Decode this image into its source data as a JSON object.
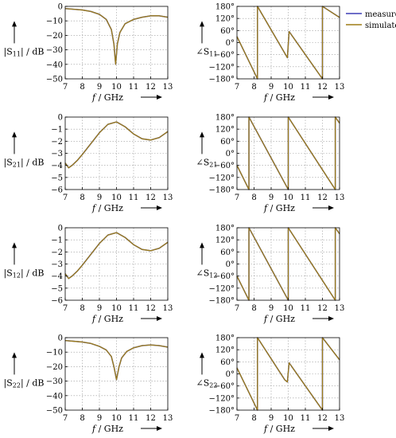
{
  "colors": {
    "measured": "#3f3fb5",
    "simulated": "#9d7d17",
    "grid": "#9a9a9a"
  },
  "legend": {
    "measured": "measured",
    "simulated": "simulated"
  },
  "chart_data": [
    {
      "id": "s11-mag",
      "type": "line",
      "ylabel_main": "|S",
      "ylabel_sub": "11",
      "ylabel_tail": "| / dB",
      "xlabel": "f / GHz",
      "xlim": [
        7,
        13
      ],
      "ylim": [
        -50,
        0
      ],
      "xticks": [
        7,
        8,
        9,
        10,
        11,
        12,
        13
      ],
      "yticks": [
        0,
        -10,
        -20,
        -30,
        -40,
        -50
      ],
      "ytick_suffix": "",
      "series": [
        {
          "name": "measured",
          "x": [
            7,
            7.5,
            8,
            8.5,
            9,
            9.4,
            9.7,
            9.85,
            9.95,
            10.05,
            10.2,
            10.5,
            11,
            11.5,
            12,
            12.5,
            13
          ],
          "y": [
            -1.5,
            -2,
            -2.5,
            -3.5,
            -5.5,
            -9,
            -16,
            -26,
            -40,
            -26,
            -18,
            -12,
            -9,
            -7.5,
            -6.5,
            -6.5,
            -7.5
          ]
        },
        {
          "name": "simulated",
          "x": [
            7,
            7.5,
            8,
            8.5,
            9,
            9.4,
            9.7,
            9.85,
            9.95,
            10.05,
            10.2,
            10.5,
            11,
            11.5,
            12,
            12.5,
            13
          ],
          "y": [
            -1.5,
            -2,
            -2.5,
            -3.5,
            -5.5,
            -9,
            -16,
            -26,
            -40,
            -26,
            -18,
            -12,
            -9,
            -7.5,
            -6.5,
            -6.5,
            -7.5
          ]
        }
      ]
    },
    {
      "id": "s11-phase",
      "type": "line",
      "ylabel_main": "∠S",
      "ylabel_sub": "11",
      "ylabel_tail": "",
      "xlabel": "f / GHz",
      "xlim": [
        7,
        13
      ],
      "ylim": [
        -180,
        180
      ],
      "xticks": [
        7,
        8,
        9,
        10,
        11,
        12,
        13
      ],
      "yticks": [
        180,
        120,
        60,
        0,
        -60,
        -120,
        -180
      ],
      "ytick_suffix": "°",
      "show_legend": true,
      "series": [
        {
          "name": "measured",
          "x": [
            7,
            8.2,
            8.2,
            9.95,
            10.05,
            12,
            12,
            13
          ],
          "y": [
            30,
            -180,
            180,
            -75,
            55,
            -180,
            180,
            125
          ]
        },
        {
          "name": "simulated",
          "x": [
            7,
            8.2,
            8.2,
            9.95,
            10.05,
            12,
            12,
            13
          ],
          "y": [
            30,
            -180,
            180,
            -75,
            55,
            -180,
            180,
            125
          ]
        }
      ]
    },
    {
      "id": "s21-mag",
      "type": "line",
      "ylabel_main": "|S",
      "ylabel_sub": "21",
      "ylabel_tail": "| / dB",
      "xlabel": "f / GHz",
      "xlim": [
        7,
        13
      ],
      "ylim": [
        -6,
        0
      ],
      "xticks": [
        7,
        8,
        9,
        10,
        11,
        12,
        13
      ],
      "yticks": [
        0,
        -1,
        -2,
        -3,
        -4,
        -5,
        -6
      ],
      "ytick_suffix": "",
      "series": [
        {
          "name": "measured",
          "x": [
            7,
            7.2,
            7.4,
            7.7,
            8,
            8.5,
            9,
            9.5,
            10,
            10.5,
            11,
            11.5,
            12,
            12.5,
            13
          ],
          "y": [
            -3.8,
            -4.2,
            -4.0,
            -3.6,
            -3.1,
            -2.2,
            -1.3,
            -0.6,
            -0.4,
            -0.8,
            -1.4,
            -1.8,
            -1.9,
            -1.7,
            -1.2
          ]
        },
        {
          "name": "simulated",
          "x": [
            7,
            7.2,
            7.4,
            7.7,
            8,
            8.5,
            9,
            9.5,
            10,
            10.5,
            11,
            11.5,
            12,
            12.5,
            13
          ],
          "y": [
            -3.8,
            -4.2,
            -4.0,
            -3.6,
            -3.1,
            -2.2,
            -1.3,
            -0.6,
            -0.4,
            -0.8,
            -1.4,
            -1.8,
            -1.9,
            -1.7,
            -1.2
          ]
        }
      ]
    },
    {
      "id": "s21-phase",
      "type": "line",
      "ylabel_main": "∠S",
      "ylabel_sub": "21",
      "ylabel_tail": "",
      "xlabel": "f / GHz",
      "xlim": [
        7,
        13
      ],
      "ylim": [
        -180,
        180
      ],
      "xticks": [
        7,
        8,
        9,
        10,
        11,
        12,
        13
      ],
      "yticks": [
        180,
        120,
        60,
        0,
        -60,
        -120,
        -180
      ],
      "ytick_suffix": "°",
      "series": [
        {
          "name": "measured",
          "x": [
            7,
            7.7,
            7.7,
            10,
            10,
            12.75,
            12.75,
            13
          ],
          "y": [
            -60,
            -180,
            180,
            -180,
            180,
            -180,
            180,
            150
          ]
        },
        {
          "name": "simulated",
          "x": [
            7,
            7.7,
            7.7,
            10,
            10,
            12.75,
            12.75,
            13
          ],
          "y": [
            -60,
            -180,
            180,
            -180,
            180,
            -180,
            180,
            150
          ]
        }
      ]
    },
    {
      "id": "s12-mag",
      "type": "line",
      "ylabel_main": "|S",
      "ylabel_sub": "12",
      "ylabel_tail": "| / dB",
      "xlabel": "f / GHz",
      "xlim": [
        7,
        13
      ],
      "ylim": [
        -6,
        0
      ],
      "xticks": [
        7,
        8,
        9,
        10,
        11,
        12,
        13
      ],
      "yticks": [
        0,
        -1,
        -2,
        -3,
        -4,
        -5,
        -6
      ],
      "ytick_suffix": "",
      "series": [
        {
          "name": "measured",
          "x": [
            7,
            7.2,
            7.4,
            7.7,
            8,
            8.5,
            9,
            9.5,
            10,
            10.5,
            11,
            11.5,
            12,
            12.5,
            13
          ],
          "y": [
            -3.8,
            -4.2,
            -4.0,
            -3.6,
            -3.1,
            -2.2,
            -1.3,
            -0.6,
            -0.4,
            -0.8,
            -1.4,
            -1.8,
            -1.9,
            -1.7,
            -1.2
          ]
        },
        {
          "name": "simulated",
          "x": [
            7,
            7.2,
            7.4,
            7.7,
            8,
            8.5,
            9,
            9.5,
            10,
            10.5,
            11,
            11.5,
            12,
            12.5,
            13
          ],
          "y": [
            -3.8,
            -4.2,
            -4.0,
            -3.6,
            -3.1,
            -2.2,
            -1.3,
            -0.6,
            -0.4,
            -0.8,
            -1.4,
            -1.8,
            -1.9,
            -1.7,
            -1.2
          ]
        }
      ]
    },
    {
      "id": "s12-phase",
      "type": "line",
      "ylabel_main": "∠S",
      "ylabel_sub": "12",
      "ylabel_tail": "",
      "xlabel": "f / GHz",
      "xlim": [
        7,
        13
      ],
      "ylim": [
        -180,
        180
      ],
      "xticks": [
        7,
        8,
        9,
        10,
        11,
        12,
        13
      ],
      "yticks": [
        180,
        120,
        60,
        0,
        -60,
        -120,
        -180
      ],
      "ytick_suffix": "°",
      "series": [
        {
          "name": "measured",
          "x": [
            7,
            7.7,
            7.7,
            10,
            10,
            12.75,
            12.75,
            13
          ],
          "y": [
            -60,
            -180,
            180,
            -180,
            180,
            -180,
            180,
            150
          ]
        },
        {
          "name": "simulated",
          "x": [
            7,
            7.7,
            7.7,
            10,
            10,
            12.75,
            12.75,
            13
          ],
          "y": [
            -60,
            -180,
            180,
            -180,
            180,
            -180,
            180,
            150
          ]
        }
      ]
    },
    {
      "id": "s22-mag",
      "type": "line",
      "ylabel_main": "|S",
      "ylabel_sub": "22",
      "ylabel_tail": "| / dB",
      "xlabel": "f / GHz",
      "xlim": [
        7,
        13
      ],
      "ylim": [
        -50,
        0
      ],
      "xticks": [
        7,
        8,
        9,
        10,
        11,
        12,
        13
      ],
      "yticks": [
        0,
        -10,
        -20,
        -30,
        -40,
        -50
      ],
      "ytick_suffix": "",
      "series": [
        {
          "name": "measured",
          "x": [
            7,
            7.5,
            8,
            8.5,
            9,
            9.4,
            9.7,
            9.85,
            10,
            10.15,
            10.3,
            10.6,
            11,
            11.5,
            12,
            12.5,
            13
          ],
          "y": [
            -2,
            -2.5,
            -3,
            -4,
            -6,
            -8.5,
            -13,
            -20,
            -29,
            -20,
            -14,
            -9.5,
            -7,
            -5.5,
            -5,
            -5.5,
            -6.5
          ]
        },
        {
          "name": "simulated",
          "x": [
            7,
            7.5,
            8,
            8.5,
            9,
            9.4,
            9.7,
            9.85,
            10,
            10.15,
            10.3,
            10.6,
            11,
            11.5,
            12,
            12.5,
            13
          ],
          "y": [
            -2,
            -2.5,
            -3,
            -4,
            -6,
            -8.5,
            -13,
            -20,
            -29,
            -20,
            -14,
            -9.5,
            -7,
            -5.5,
            -5,
            -5.5,
            -6.5
          ]
        }
      ]
    },
    {
      "id": "s22-phase",
      "type": "line",
      "ylabel_main": "∠S",
      "ylabel_sub": "22",
      "ylabel_tail": "",
      "xlabel": "f / GHz",
      "xlim": [
        7,
        13
      ],
      "ylim": [
        -180,
        180
      ],
      "xticks": [
        7,
        8,
        9,
        10,
        11,
        12,
        13
      ],
      "yticks": [
        180,
        120,
        60,
        0,
        -60,
        -120,
        -180
      ],
      "ytick_suffix": "°",
      "series": [
        {
          "name": "measured",
          "x": [
            7,
            8.2,
            8.2,
            9.8,
            9.95,
            10.05,
            12,
            12,
            13
          ],
          "y": [
            30,
            -180,
            180,
            -30,
            -40,
            55,
            -180,
            180,
            70
          ]
        },
        {
          "name": "simulated",
          "x": [
            7,
            8.2,
            8.2,
            9.8,
            9.95,
            10.05,
            12,
            12,
            13
          ],
          "y": [
            30,
            -180,
            180,
            -30,
            -40,
            55,
            -180,
            180,
            70
          ]
        }
      ]
    }
  ]
}
